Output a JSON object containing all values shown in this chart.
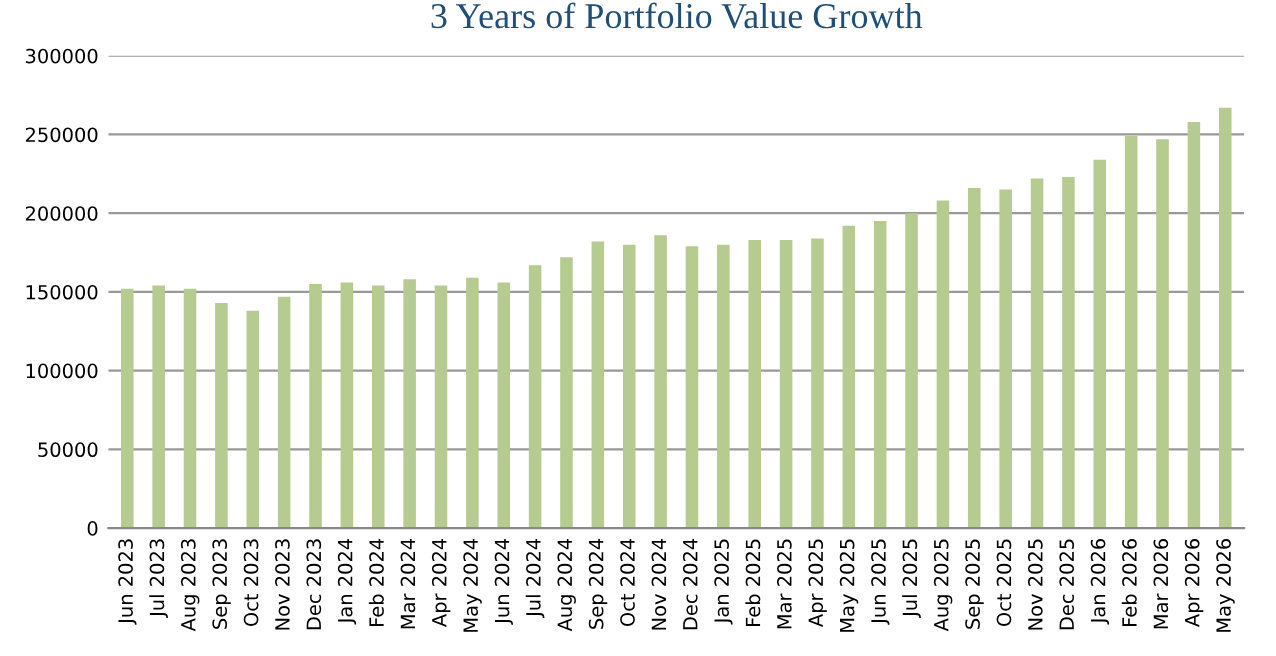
{
  "chart_data": {
    "type": "bar",
    "title": "3 Years of Portfolio Value Growth",
    "categories": [
      "Jun 2023",
      "Jul 2023",
      "Aug 2023",
      "Sep 2023",
      "Oct 2023",
      "Nov 2023",
      "Dec 2023",
      "Jan 2024",
      "Feb 2024",
      "Mar 2024",
      "Apr 2024",
      "May 2024",
      "Jun 2024",
      "Jul 2024",
      "Aug 2024",
      "Sep 2024",
      "Oct 2024",
      "Nov 2024",
      "Dec 2024",
      "Jan 2025",
      "Feb 2025",
      "Mar 2025",
      "Apr 2025",
      "May 2025",
      "Jun 2025",
      "Jul 2025",
      "Aug 2025",
      "Sep 2025",
      "Oct 2025",
      "Nov 2025",
      "Dec 2025",
      "Jan 2026",
      "Feb 2026",
      "Mar 2026",
      "Apr 2026",
      "May 2026"
    ],
    "values": [
      152000,
      154000,
      152000,
      143000,
      138000,
      147000,
      155000,
      156000,
      154000,
      158000,
      154000,
      159000,
      156000,
      167000,
      172000,
      182000,
      180000,
      186000,
      179000,
      180000,
      183000,
      183000,
      184000,
      192000,
      195000,
      200000,
      208000,
      216000,
      215000,
      222000,
      223000,
      234000,
      249000,
      247000,
      258000,
      267000
    ],
    "color": "#b5cb8f",
    "ylim": [
      0,
      300000
    ],
    "yticks": [
      0,
      50000,
      100000,
      150000,
      200000,
      250000,
      300000
    ],
    "grid": "y",
    "legend": false
  }
}
